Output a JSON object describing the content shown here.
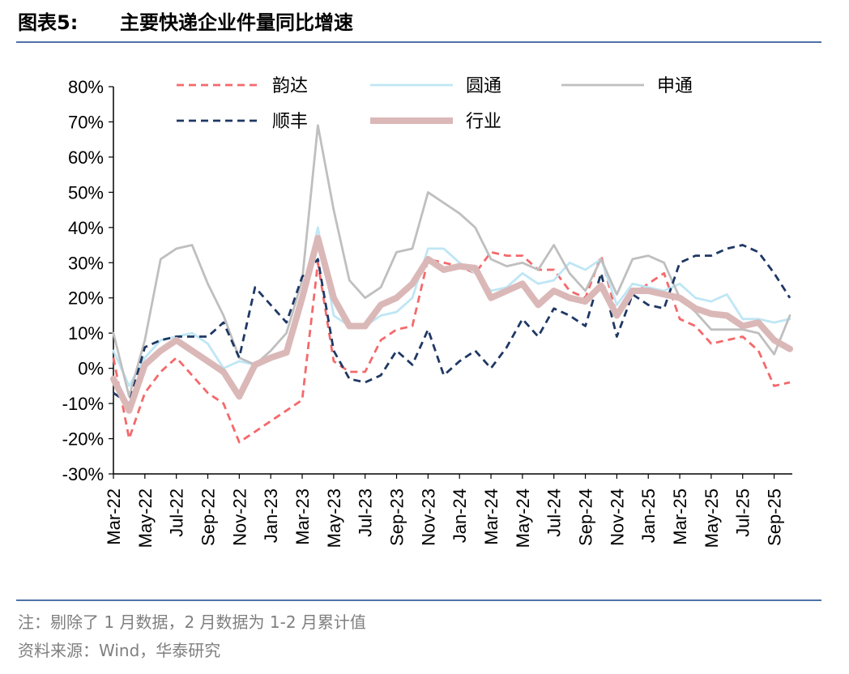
{
  "figure_label": "图表5:",
  "notes": [
    "注：剔除了 1 月数据，2 月数据为 1-2 月累计值",
    "资料来源：Wind，华泰研究"
  ],
  "chart_data": {
    "type": "line",
    "title": "主要快递企业件量同比增速",
    "categories": [
      "Mar-22",
      null,
      "May-22",
      null,
      "Jul-22",
      null,
      "Sep-22",
      null,
      "Nov-22",
      null,
      "Jan-23",
      null,
      "Mar-23",
      null,
      "May-23",
      null,
      "Jul-23",
      null,
      "Sep-23",
      null,
      "Nov-23",
      null,
      "Jan-24",
      null,
      "Mar-24",
      null,
      "May-24",
      null,
      "Jul-24",
      null,
      "Sep-24",
      null,
      "Nov-24",
      null,
      "Jan-25",
      null,
      "Mar-25",
      null,
      "May-25",
      null,
      "Jul-25",
      null,
      "Sep-25",
      null
    ],
    "ylim": [
      -30,
      80
    ],
    "yticks": [
      {
        "value": -30,
        "label": "-30%"
      },
      {
        "value": -20,
        "label": "-20%"
      },
      {
        "value": -10,
        "label": "-10%"
      },
      {
        "value": 0,
        "label": "0%"
      },
      {
        "value": 10,
        "label": "10%"
      },
      {
        "value": 20,
        "label": "20%"
      },
      {
        "value": 30,
        "label": "30%"
      },
      {
        "value": 40,
        "label": "40%"
      },
      {
        "value": 50,
        "label": "50%"
      },
      {
        "value": 60,
        "label": "60%"
      },
      {
        "value": 70,
        "label": "70%"
      },
      {
        "value": 80,
        "label": "80%"
      }
    ],
    "series": [
      {
        "name": "韵达",
        "color": "#f4696b",
        "dash": true,
        "values": [
          3,
          -20,
          -7,
          -1,
          3,
          -2,
          -7,
          -10,
          -21,
          -18,
          -15,
          -12,
          -9,
          30,
          2,
          -1,
          -1,
          8,
          11,
          12,
          31,
          30,
          29,
          27,
          33,
          32,
          32,
          28,
          28,
          22,
          20,
          32,
          15,
          21,
          24,
          27,
          14,
          12,
          7,
          8,
          9,
          5,
          -5,
          -4
        ]
      },
      {
        "name": "圆通",
        "color": "#bfe6f5",
        "dash": false,
        "values": [
          5,
          -5,
          3,
          8,
          9,
          10,
          7,
          0,
          2,
          1,
          3,
          5,
          20,
          40,
          15,
          12,
          12,
          15,
          16,
          20,
          34,
          34,
          30,
          27,
          22,
          23,
          27,
          24,
          25,
          30,
          28,
          31,
          18,
          24,
          23,
          22,
          24,
          20,
          19,
          21,
          14,
          14,
          13,
          14
        ]
      },
      {
        "name": "申通",
        "color": "#bfbfbf",
        "dash": false,
        "values": [
          10,
          -8,
          8,
          31,
          34,
          35,
          24,
          15,
          3,
          1,
          5,
          10,
          25,
          69,
          45,
          25,
          20,
          23,
          33,
          34,
          50,
          47,
          44,
          40,
          31,
          29,
          30,
          28,
          35,
          27,
          22,
          31,
          21,
          31,
          32,
          30,
          20,
          16,
          11,
          11,
          11,
          10,
          4,
          15
        ]
      },
      {
        "name": "顺丰",
        "color": "#1f3864",
        "dash": true,
        "values": [
          -7,
          -10,
          6,
          8,
          9,
          9,
          9,
          13,
          3,
          23,
          18,
          13,
          26,
          31,
          5,
          -3,
          -4,
          -2,
          5,
          1,
          11,
          -2,
          2,
          5,
          0,
          6,
          14,
          9,
          17,
          15,
          12,
          27,
          9,
          21,
          18,
          17,
          30,
          32,
          32,
          34,
          35,
          33,
          27,
          20
        ]
      },
      {
        "name": "行业",
        "color": "#dbb8b8",
        "dash": false,
        "thick": true,
        "values": [
          -3,
          -12,
          1,
          5,
          8,
          5,
          2,
          -1,
          -8,
          1,
          3,
          4.5,
          20,
          37,
          20,
          12,
          12,
          18,
          20,
          24,
          31,
          28,
          29,
          28.5,
          20,
          22,
          24,
          18,
          22,
          20,
          19,
          23.5,
          15,
          22,
          22,
          21,
          20,
          17,
          15.5,
          15,
          12,
          13,
          8,
          5.5
        ]
      }
    ]
  }
}
